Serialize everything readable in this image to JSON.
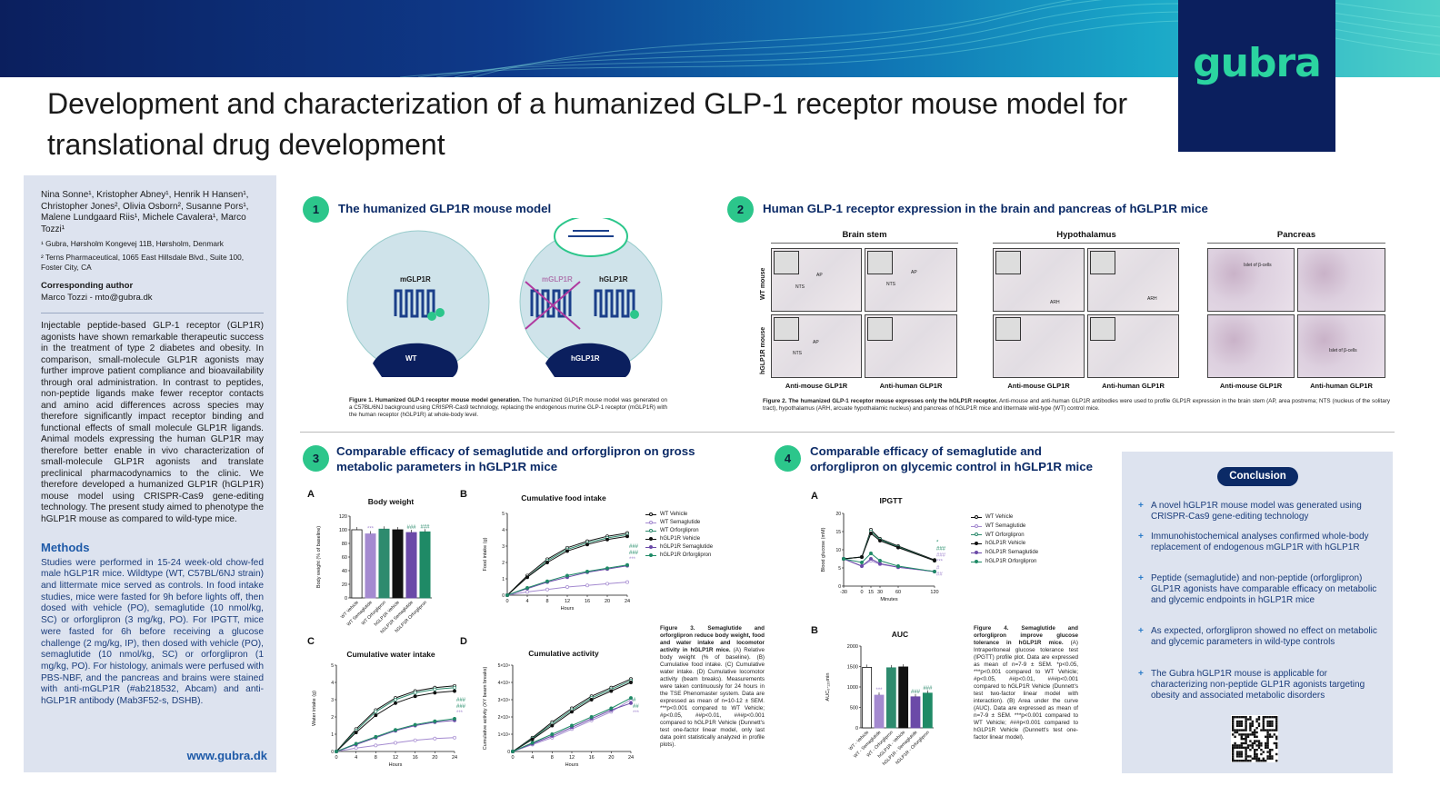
{
  "header": {
    "title": "Development and characterization of a humanized GLP-1 receptor mouse model for translational drug development",
    "logo": "gubra",
    "colors": {
      "navy": "#0b1f5e",
      "green": "#2bd4a0"
    }
  },
  "sidebar": {
    "authors": "Nina Sonne¹, Kristopher Abney¹, Henrik H Hansen¹, Christopher Jones², Olivia Osborn², Susanne Pors¹, Malene Lundgaard Riis¹, Michele Cavalera¹, Marco Tozzi¹",
    "affil1": "¹ Gubra, Hørsholm Kongevej 11B, Hørsholm, Denmark",
    "affil2": "² Terns Pharmaceutical, 1065 East Hillsdale Blvd., Suite 100, Foster City, CA",
    "corr_heading": "Corresponding author",
    "corr_text": "Marco Tozzi - mto@gubra.dk",
    "intro": "Injectable peptide-based GLP-1 receptor (GLP1R) agonists have shown remarkable therapeutic success in the treatment of type 2 diabetes and obesity. In comparison, small-molecule GLP1R agonists may further improve patient compliance and bioavailability through oral administration. In contrast to peptides, non-peptide ligands make fewer receptor contacts and amino acid differences across species may therefore significantly impact receptor binding and functional effects of small molecule GLP1R ligands. Animal models expressing the human GLP1R may therefore better enable in vivo characterization of small-molecule GLP1R agonists and translate preclinical pharmacodynamics to the clinic. We therefore developed a humanized GLP1R (hGLP1R) mouse model using CRISPR-Cas9 gene-editing technology. The present study aimed to phenotype the hGLP1R mouse as compared to wild-type mice.",
    "methods_heading": "Methods",
    "methods": "Studies were performed in 15-24 week-old chow-fed male hGLP1R mice. Wildtype (WT, C57BL/6NJ strain) and littermate mice served as controls. In food intake studies, mice were fasted for 9h before lights off, then dosed with vehicle (PO), semaglutide (10 nmol/kg, SC) or orforglipron (3 mg/kg, PO). For IPGTT, mice were fasted for 6h before receiving a glucose challenge (2 mg/kg, IP), then dosed with vehicle (PO), semaglutide (10 nmol/kg, SC) or orforglipron (1 mg/kg, PO). For histology, animals were perfused with PBS-NBF, and the pancreas and brains were stained with anti-mGLP1R (#ab218532, Abcam) and anti-hGLP1R antibody (Mab3F52-s, DSHB).",
    "url": "www.gubra.dk"
  },
  "section1": {
    "num": "1",
    "title": "The humanized GLP1R mouse model",
    "labels": {
      "mglp1r": "mGLP1R",
      "mglp1r_x": "mGLP1R",
      "hglp1r": "hGLP1R",
      "wt": "WT",
      "hglp1r_mouse": "hGLP1R"
    },
    "caption_bold": "Figure 1. Humanized GLP-1 receptor mouse model generation.",
    "caption": " The humanized GLP1R mouse model was generated on a C57BL/6NJ background using CRISPR-Cas9 technology, replacing the endogenous murine GLP-1 receptor (mGLP1R) with the human receptor (hGLP1R) at whole-body level."
  },
  "section2": {
    "num": "2",
    "title": "Human GLP-1 receptor expression in the brain and pancreas of hGLP1R mice",
    "regions": [
      "Brain stem",
      "Hypothalamus",
      "Pancreas"
    ],
    "row_labels": [
      "WT mouse",
      "hGLP1R mouse"
    ],
    "antibodies": [
      "Anti-mouse GLP1R",
      "Anti-human GLP1R"
    ],
    "tile_labels": {
      "ap": "AP",
      "nts": "NTS",
      "arh": "ARH",
      "islet": "Islet of β-cells"
    },
    "caption_bold": "Figure 2. The humanized GLP-1 receptor mouse expresses only the hGLP1R receptor.",
    "caption": " Anti-mouse and anti-human GLP1R antibodies were used to profile GLP1R expression in the brain stem (AP, area postrema; NTS (nucleus of the solitary tract), hypothalamus (ARH, arcuate hypothalamic nucleus) and pancreas of hGLP1R mice and littermate wild-type (WT) control mice."
  },
  "section3": {
    "num": "3",
    "title": "Comparable efficacy of semaglutide and orforglipron on gross metabolic parameters in hGLP1R mice",
    "panels": [
      "A",
      "B",
      "C",
      "D"
    ],
    "chart_titles": [
      "Body weight",
      "Cumulative food intake",
      "Cumulative water intake",
      "Cumulative activity"
    ],
    "ylabels": [
      "Body weight (% of baseline)",
      "Food intake (g)",
      "Water intake (g)",
      "Cumulative activity (XY beam breaks)"
    ],
    "xlabel": "Hours",
    "caption_bold": "Figure 3. Semaglutide and orforglipron reduce body weight, food and water intake and locomotor activity in hGLP1R mice.",
    "caption": " (A) Relative body weight (% of baseline). (B) Cumulative food intake. (C) Cumulative water intake. (D) Cumulative locomotor activity (beam breaks). Measurements were taken continuously for 24 hours in the TSE Phenomaster system. Data are expressed as mean of n=10-12 ± SEM. ***p<0.001 compared to WT Vehicle; #p<0.05, ##p<0.01, ###p<0.001 compared to hGLP1R Vehicle (Dunnett's test one-factor linear model, only last data point statistically analyzed in profile plots)."
  },
  "section4": {
    "num": "4",
    "title": "Comparable efficacy of semaglutide and orforglipron on glycemic control in hGLP1R mice",
    "panels": [
      "A",
      "B"
    ],
    "chart_titles": [
      "IPGTT",
      "AUC"
    ],
    "ylabels": [
      "Blood glucose (mM)",
      "AUC₀-₁₂₀min"
    ],
    "xlabel": "Minutes",
    "caption_bold": "Figure 4. Semaglutide and orforglipron improve glucose tolerance in hGLP1R mice.",
    "caption": " (A) Intraperitoneal glucose tolerance test (IPGTT) profile plot. Data are expressed as mean of n=7-9 ± SEM. *p<0.05, ***p<0.001 compared to WT Vehicle; #p<0.05, ##p<0.01, ###p<0.001 compared to hGLP1R Vehicle (Dunnett's test two-factor linear model with interaction). (B) Area under the curve (AUC). Data are expressed as mean of n=7-9 ± SEM. ***p<0.001 compared to WT Vehicle; ###p<0.001 compared to hGLP1R Vehicle (Dunnett's test one-factor linear model)."
  },
  "legend": {
    "groups": [
      "WT Vehicle",
      "WT Semaglutide",
      "WT Orforglipron",
      "hGLP1R Vehicle",
      "hGLP1R Semaglutide",
      "hGLP1R Orforglipron"
    ],
    "colors": [
      "#ffffff",
      "#a48ad0",
      "#2e8b6e",
      "#111111",
      "#6b4aa8",
      "#1f8a66"
    ]
  },
  "conclusion": {
    "heading": "Conclusion",
    "items": [
      "A novel hGLP1R mouse model was generated using CRISPR-Cas9 gene-editing technology",
      "Immunohistochemical analyses confirmed whole-body replacement of endogenous mGLP1R with hGLP1R",
      "Peptide (semaglutide) and non-peptide (orforglipron) GLP1R agonists have comparable efficacy on metabolic and glycemic endpoints in hGLP1R mice",
      "As expected, orforglipron showed no effect on metabolic and glycemic parameters in wild-type controls",
      "The Gubra hGLP1R mouse is applicable for characterizing non-peptide GLP1R agonists targeting obesity and associated metabolic disorders"
    ]
  },
  "chart_data": [
    {
      "type": "bar",
      "title": "Body weight",
      "ylabel": "Body weight (% of baseline)",
      "ylim": [
        0,
        120
      ],
      "yticks": [
        0,
        20,
        40,
        60,
        80,
        100,
        120
      ],
      "categories": [
        "WT Vehicle",
        "WT Semaglutide",
        "WT Orforglipron",
        "hGLP1R Vehicle",
        "hGLP1R Semaglutide",
        "hGLP1R Orforglipron"
      ],
      "values": [
        100,
        94,
        101,
        100,
        96,
        97
      ],
      "annotations": [
        "",
        "***",
        "",
        "",
        "###",
        "###"
      ]
    },
    {
      "type": "line",
      "title": "Cumulative food intake",
      "xlabel": "Hours",
      "ylabel": "Food intake (g)",
      "xlim": [
        0,
        24
      ],
      "ylim": [
        0,
        5
      ],
      "xticks": [
        0,
        4,
        8,
        12,
        16,
        20,
        24
      ],
      "yticks": [
        0,
        1,
        2,
        3,
        4,
        5
      ],
      "x": [
        0,
        4,
        8,
        12,
        16,
        20,
        24
      ],
      "series": [
        {
          "name": "WT Vehicle",
          "values": [
            0,
            1.2,
            2.2,
            2.9,
            3.3,
            3.6,
            3.8
          ]
        },
        {
          "name": "WT Semaglutide",
          "values": [
            0,
            0.2,
            0.35,
            0.5,
            0.6,
            0.7,
            0.8
          ]
        },
        {
          "name": "WT Orforglipron",
          "values": [
            0,
            1.1,
            2.1,
            2.8,
            3.2,
            3.5,
            3.7
          ]
        },
        {
          "name": "hGLP1R Vehicle",
          "values": [
            0,
            1.1,
            2.0,
            2.7,
            3.1,
            3.4,
            3.6
          ]
        },
        {
          "name": "hGLP1R Semaglutide",
          "values": [
            0,
            0.4,
            0.8,
            1.1,
            1.4,
            1.6,
            1.8
          ]
        },
        {
          "name": "hGLP1R Orforglipron",
          "values": [
            0,
            0.45,
            0.85,
            1.2,
            1.45,
            1.65,
            1.85
          ]
        }
      ],
      "annotations": [
        "###",
        "###",
        "***"
      ]
    },
    {
      "type": "line",
      "title": "Cumulative water intake",
      "xlabel": "Hours",
      "ylabel": "Water intake (g)",
      "xlim": [
        0,
        24
      ],
      "ylim": [
        0,
        5
      ],
      "xticks": [
        0,
        4,
        8,
        12,
        16,
        20,
        24
      ],
      "yticks": [
        0,
        1,
        2,
        3,
        4,
        5
      ],
      "x": [
        0,
        4,
        8,
        12,
        16,
        20,
        24
      ],
      "series": [
        {
          "name": "WT Vehicle",
          "values": [
            0,
            1.3,
            2.4,
            3.1,
            3.5,
            3.7,
            3.8
          ]
        },
        {
          "name": "WT Semaglutide",
          "values": [
            0,
            0.2,
            0.35,
            0.5,
            0.65,
            0.75,
            0.8
          ]
        },
        {
          "name": "WT Orforglipron",
          "values": [
            0,
            1.2,
            2.3,
            3.0,
            3.4,
            3.6,
            3.7
          ]
        },
        {
          "name": "hGLP1R Vehicle",
          "values": [
            0,
            1.1,
            2.1,
            2.8,
            3.2,
            3.4,
            3.5
          ]
        },
        {
          "name": "hGLP1R Semaglutide",
          "values": [
            0,
            0.4,
            0.8,
            1.2,
            1.5,
            1.7,
            1.8
          ]
        },
        {
          "name": "hGLP1R Orforglipron",
          "values": [
            0,
            0.45,
            0.85,
            1.25,
            1.55,
            1.75,
            1.9
          ]
        }
      ],
      "annotations": [
        "###",
        "###",
        "***"
      ]
    },
    {
      "type": "line",
      "title": "Cumulative activity",
      "xlabel": "Hours",
      "ylabel": "Cumulative activity (XY beam breaks)",
      "xlim": [
        0,
        24
      ],
      "ylim": [
        0,
        50000
      ],
      "xticks": [
        0,
        4,
        8,
        12,
        16,
        20,
        24
      ],
      "yticks": [
        "0",
        "1×10⁴",
        "2×10⁴",
        "3×10⁴",
        "4×10⁴",
        "5×10⁴"
      ],
      "x": [
        0,
        4,
        8,
        12,
        16,
        20,
        24
      ],
      "series": [
        {
          "name": "WT Vehicle",
          "values": [
            0,
            8000,
            17000,
            25000,
            32000,
            37000,
            42000
          ]
        },
        {
          "name": "WT Semaglutide",
          "values": [
            0,
            4000,
            8000,
            13000,
            18000,
            23000,
            30000
          ]
        },
        {
          "name": "WT Orforglipron",
          "values": [
            0,
            7500,
            16000,
            24000,
            31000,
            36000,
            41000
          ]
        },
        {
          "name": "hGLP1R Vehicle",
          "values": [
            0,
            7000,
            15000,
            23000,
            30000,
            35000,
            40000
          ]
        },
        {
          "name": "hGLP1R Semaglutide",
          "values": [
            0,
            4500,
            9000,
            14000,
            19000,
            24000,
            28000
          ]
        },
        {
          "name": "hGLP1R Orforglipron",
          "values": [
            0,
            5000,
            10000,
            15000,
            20000,
            25000,
            31000
          ]
        }
      ],
      "annotations": [
        "#",
        "##",
        "***"
      ]
    },
    {
      "type": "line",
      "title": "IPGTT",
      "xlabel": "Minutes",
      "ylabel": "Blood glucose (mM)",
      "xlim": [
        -30,
        120
      ],
      "ylim": [
        0,
        20
      ],
      "xticks": [
        -30,
        0,
        15,
        30,
        60,
        120
      ],
      "yticks": [
        0,
        5,
        10,
        15,
        20
      ],
      "x": [
        -30,
        0,
        15,
        30,
        60,
        120
      ],
      "series": [
        {
          "name": "WT Vehicle",
          "values": [
            7.5,
            8,
            15.5,
            13,
            11,
            7.2
          ]
        },
        {
          "name": "WT Semaglutide",
          "values": [
            7.5,
            5.5,
            7,
            6,
            5.2,
            4
          ]
        },
        {
          "name": "WT Orforglipron",
          "values": [
            7.5,
            8,
            15,
            12.8,
            10.8,
            7
          ]
        },
        {
          "name": "hGLP1R Vehicle",
          "values": [
            7.5,
            8,
            14.5,
            12.5,
            10.6,
            7
          ]
        },
        {
          "name": "hGLP1R Semaglutide",
          "values": [
            7.5,
            5.5,
            7.5,
            6.2,
            5.2,
            4
          ]
        },
        {
          "name": "hGLP1R Orforglipron",
          "values": [
            7.5,
            6.5,
            9,
            7,
            5.5,
            4
          ]
        }
      ],
      "annotations": [
        "*",
        "###",
        "###",
        "***",
        "#",
        "##"
      ]
    },
    {
      "type": "bar",
      "title": "AUC",
      "ylabel": "AUC₀-₁₂₀min",
      "ylim": [
        0,
        2000
      ],
      "yticks": [
        0,
        500,
        1000,
        1500,
        2000
      ],
      "categories": [
        "WT - Vehicle",
        "WT - Semaglutide",
        "WT - Orforglipron",
        "hGLP1R - Vehicle",
        "hGLP1R - Semaglutide",
        "hGLP1R - Orforglipron"
      ],
      "values": [
        1480,
        800,
        1470,
        1490,
        760,
        850
      ],
      "annotations": [
        "",
        "***",
        "",
        "",
        "###",
        "###"
      ]
    }
  ]
}
